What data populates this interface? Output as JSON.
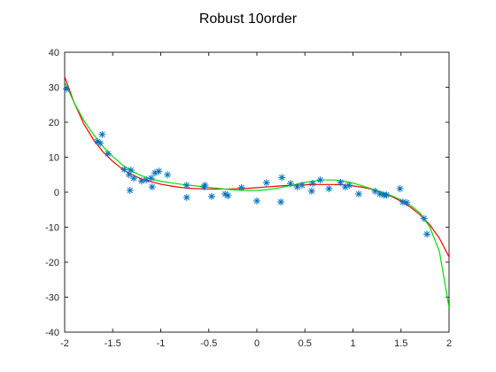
{
  "chart_data": {
    "type": "scatter",
    "title": "Robust 10order",
    "xlabel": "",
    "ylabel": "",
    "xlim": [
      -2,
      2
    ],
    "ylim": [
      -40,
      40
    ],
    "x_ticks": [
      -2,
      -1.5,
      -1,
      -0.5,
      0,
      0.5,
      1,
      1.5,
      2
    ],
    "y_ticks": [
      -40,
      -30,
      -20,
      -10,
      0,
      10,
      20,
      30,
      40
    ],
    "x_tick_labels": [
      "-2",
      "-1.5",
      "-1",
      "-0.5",
      "0",
      "0.5",
      "1",
      "1.5",
      "2"
    ],
    "y_tick_labels": [
      "-40",
      "-30",
      "-20",
      "-10",
      "0",
      "10",
      "20",
      "30",
      "40"
    ],
    "grid": false,
    "series": [
      {
        "type": "scatter",
        "marker": "asterisk",
        "color": "#0072BD",
        "points": [
          [
            -1.98,
            29.5
          ],
          [
            -1.66,
            14.5
          ],
          [
            -1.63,
            14.0
          ],
          [
            -1.61,
            16.5
          ],
          [
            -1.55,
            11.0
          ],
          [
            -1.38,
            6.5
          ],
          [
            -1.33,
            5.0
          ],
          [
            -1.31,
            6.3
          ],
          [
            -1.32,
            0.5
          ],
          [
            -1.28,
            4.0
          ],
          [
            -1.2,
            3.2
          ],
          [
            -1.15,
            3.5
          ],
          [
            -1.1,
            4.0
          ],
          [
            -1.09,
            1.5
          ],
          [
            -1.06,
            5.5
          ],
          [
            -1.02,
            6.0
          ],
          [
            -0.93,
            5.0
          ],
          [
            -0.73,
            2.0
          ],
          [
            -0.73,
            -1.5
          ],
          [
            -0.55,
            1.5
          ],
          [
            -0.54,
            2.0
          ],
          [
            -0.47,
            -1.2
          ],
          [
            -0.33,
            -0.5
          ],
          [
            -0.3,
            -1.0
          ],
          [
            -0.16,
            1.3
          ],
          [
            0.0,
            -2.5
          ],
          [
            0.1,
            2.7
          ],
          [
            0.25,
            -2.8
          ],
          [
            0.26,
            4.2
          ],
          [
            0.35,
            2.5
          ],
          [
            0.42,
            1.5
          ],
          [
            0.47,
            2.0
          ],
          [
            0.57,
            0.3
          ],
          [
            0.58,
            2.5
          ],
          [
            0.66,
            3.5
          ],
          [
            0.75,
            1.0
          ],
          [
            0.87,
            2.8
          ],
          [
            0.92,
            1.5
          ],
          [
            0.96,
            2.0
          ],
          [
            1.06,
            -0.5
          ],
          [
            1.23,
            0.3
          ],
          [
            1.28,
            -0.5
          ],
          [
            1.32,
            -0.8
          ],
          [
            1.35,
            -0.8
          ],
          [
            1.49,
            1.0
          ],
          [
            1.52,
            -2.8
          ],
          [
            1.56,
            -3.0
          ],
          [
            1.74,
            -7.5
          ],
          [
            1.77,
            -12.0
          ]
        ]
      },
      {
        "type": "line",
        "color": "#FF0000",
        "points": [
          [
            -2.0,
            33.0
          ],
          [
            -1.9,
            25.5
          ],
          [
            -1.8,
            19.5
          ],
          [
            -1.7,
            15.0
          ],
          [
            -1.6,
            11.5
          ],
          [
            -1.5,
            8.8
          ],
          [
            -1.4,
            6.6
          ],
          [
            -1.3,
            5.0
          ],
          [
            -1.2,
            3.8
          ],
          [
            -1.1,
            3.0
          ],
          [
            -1.0,
            2.3
          ],
          [
            -0.9,
            1.8
          ],
          [
            -0.8,
            1.4
          ],
          [
            -0.7,
            1.1
          ],
          [
            -0.6,
            1.0
          ],
          [
            -0.5,
            0.9
          ],
          [
            -0.4,
            0.9
          ],
          [
            -0.3,
            0.9
          ],
          [
            -0.2,
            1.0
          ],
          [
            -0.1,
            1.1
          ],
          [
            0.0,
            1.3
          ],
          [
            0.1,
            1.5
          ],
          [
            0.2,
            1.7
          ],
          [
            0.3,
            1.9
          ],
          [
            0.4,
            2.0
          ],
          [
            0.5,
            2.1
          ],
          [
            0.6,
            2.2
          ],
          [
            0.7,
            2.2
          ],
          [
            0.8,
            2.2
          ],
          [
            0.9,
            2.1
          ],
          [
            1.0,
            1.8
          ],
          [
            1.1,
            1.4
          ],
          [
            1.2,
            0.8
          ],
          [
            1.3,
            -0.1
          ],
          [
            1.4,
            -1.2
          ],
          [
            1.5,
            -2.6
          ],
          [
            1.6,
            -4.3
          ],
          [
            1.7,
            -6.5
          ],
          [
            1.8,
            -9.3
          ],
          [
            1.9,
            -13.2
          ],
          [
            2.0,
            -18.5
          ]
        ]
      },
      {
        "type": "line",
        "color": "#00E000",
        "points": [
          [
            -2.0,
            31.5
          ],
          [
            -1.9,
            25.5
          ],
          [
            -1.8,
            20.5
          ],
          [
            -1.7,
            16.5
          ],
          [
            -1.6,
            13.0
          ],
          [
            -1.5,
            10.2
          ],
          [
            -1.4,
            7.8
          ],
          [
            -1.3,
            6.0
          ],
          [
            -1.2,
            4.7
          ],
          [
            -1.1,
            3.8
          ],
          [
            -1.0,
            3.1
          ],
          [
            -0.9,
            2.7
          ],
          [
            -0.8,
            2.3
          ],
          [
            -0.7,
            2.0
          ],
          [
            -0.6,
            1.7
          ],
          [
            -0.5,
            1.4
          ],
          [
            -0.4,
            1.1
          ],
          [
            -0.3,
            0.8
          ],
          [
            -0.2,
            0.6
          ],
          [
            -0.1,
            0.5
          ],
          [
            0.0,
            0.5
          ],
          [
            0.1,
            0.7
          ],
          [
            0.2,
            1.1
          ],
          [
            0.3,
            1.6
          ],
          [
            0.4,
            2.2
          ],
          [
            0.5,
            2.8
          ],
          [
            0.6,
            3.2
          ],
          [
            0.7,
            3.5
          ],
          [
            0.8,
            3.5
          ],
          [
            0.9,
            3.2
          ],
          [
            1.0,
            2.6
          ],
          [
            1.1,
            1.8
          ],
          [
            1.2,
            0.9
          ],
          [
            1.3,
            0.0
          ],
          [
            1.4,
            -1.0
          ],
          [
            1.5,
            -2.2
          ],
          [
            1.6,
            -3.8
          ],
          [
            1.7,
            -6.0
          ],
          [
            1.8,
            -10.0
          ],
          [
            1.9,
            -17.0
          ],
          [
            2.0,
            -33.0
          ]
        ]
      }
    ]
  }
}
